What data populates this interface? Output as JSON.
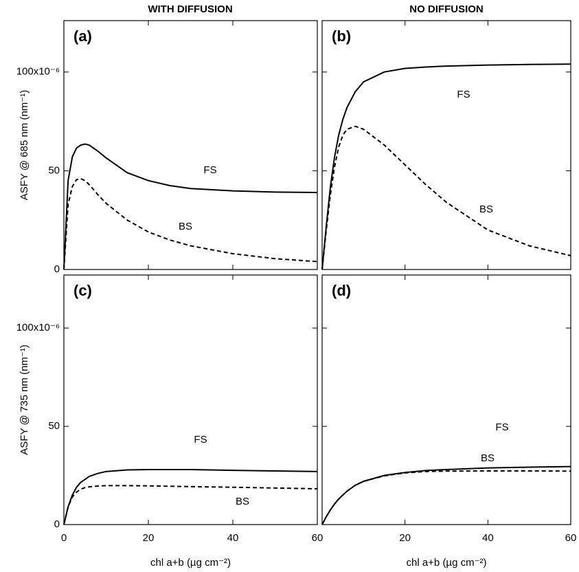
{
  "column_titles": [
    "WITH DIFFUSION",
    "NO DIFFUSION"
  ],
  "chart_data": [
    {
      "type": "line",
      "panel_label": "(a)",
      "ylabel": "ASFY @ 685 nm (nm⁻¹)",
      "x": [
        0,
        1,
        2,
        3,
        4,
        5,
        6,
        8,
        10,
        15,
        20,
        25,
        30,
        40,
        50,
        60
      ],
      "series": [
        {
          "name": "FS",
          "color": "#000000",
          "dash": false,
          "values": [
            0,
            4.5e-05,
            5.7e-05,
            6.15e-05,
            6.3e-05,
            6.35e-05,
            6.3e-05,
            6e-05,
            5.65e-05,
            4.9e-05,
            4.5e-05,
            4.25e-05,
            4.1e-05,
            3.98e-05,
            3.92e-05,
            3.9e-05
          ]
        },
        {
          "name": "BS",
          "color": "#000000",
          "dash": true,
          "values": [
            0,
            3.3e-05,
            4.2e-05,
            4.55e-05,
            4.6e-05,
            4.5e-05,
            4.3e-05,
            3.8e-05,
            3.35e-05,
            2.5e-05,
            1.9e-05,
            1.5e-05,
            1.2e-05,
            8e-06,
            5.5e-06,
            4e-06
          ]
        }
      ],
      "xlim": [
        0,
        60
      ],
      "ylim": [
        0,
        0.000126
      ],
      "xticks": [
        0,
        20,
        40,
        60
      ],
      "yticks": [
        0,
        {
          "value": 5e-05,
          "label": "50"
        },
        {
          "value": 0.0001,
          "label": "100x10⁻⁶"
        }
      ],
      "show_xtick_labels": false,
      "show_ytick_labels": true
    },
    {
      "type": "line",
      "panel_label": "(b)",
      "x": [
        0,
        1,
        2,
        3,
        4,
        5,
        6,
        8,
        10,
        15,
        20,
        25,
        30,
        40,
        50,
        60
      ],
      "series": [
        {
          "name": "FS",
          "color": "#000000",
          "dash": false,
          "values": [
            0,
            2.2e-05,
            4.2e-05,
            5.7e-05,
            6.8e-05,
            7.6e-05,
            8.2e-05,
            9e-05,
            9.5e-05,
            0.0001,
            0.0001018,
            0.0001025,
            0.000103,
            0.0001035,
            0.0001038,
            0.000104
          ]
        },
        {
          "name": "BS",
          "color": "#000000",
          "dash": true,
          "values": [
            0,
            2e-05,
            3.8e-05,
            5.2e-05,
            6.2e-05,
            6.8e-05,
            7.1e-05,
            7.25e-05,
            7.1e-05,
            6.3e-05,
            5.3e-05,
            4.3e-05,
            3.4e-05,
            2e-05,
            1.2e-05,
            7e-06
          ]
        }
      ],
      "xlim": [
        0,
        60
      ],
      "ylim": [
        0,
        0.000126
      ],
      "xticks": [
        0,
        20,
        40,
        60
      ],
      "yticks": [
        0,
        5e-05,
        0.0001
      ],
      "show_xtick_labels": false,
      "show_ytick_labels": false
    },
    {
      "type": "line",
      "panel_label": "(c)",
      "ylabel": "ASFY @ 735 nm (nm⁻¹)",
      "xlabel": "chl a+b (µg cm⁻²)",
      "x": [
        0,
        1,
        2,
        3,
        4,
        5,
        6,
        8,
        10,
        15,
        20,
        25,
        30,
        40,
        50,
        60
      ],
      "series": [
        {
          "name": "FS",
          "color": "#000000",
          "dash": false,
          "values": [
            0,
            9e-06,
            1.5e-05,
            1.9e-05,
            2.15e-05,
            2.3e-05,
            2.45e-05,
            2.6e-05,
            2.7e-05,
            2.78e-05,
            2.8e-05,
            2.8e-05,
            2.8e-05,
            2.76e-05,
            2.73e-05,
            2.7e-05
          ]
        },
        {
          "name": "BS",
          "color": "#000000",
          "dash": true,
          "values": [
            0,
            9e-06,
            1.4e-05,
            1.65e-05,
            1.8e-05,
            1.88e-05,
            1.92e-05,
            1.96e-05,
            1.98e-05,
            1.98e-05,
            1.97e-05,
            1.95e-05,
            1.93e-05,
            1.9e-05,
            1.86e-05,
            1.82e-05
          ]
        }
      ],
      "xlim": [
        0,
        60
      ],
      "ylim": [
        0,
        0.000127
      ],
      "xticks": [
        0,
        20,
        40,
        60
      ],
      "yticks": [
        0,
        {
          "value": 5e-05,
          "label": "50"
        },
        {
          "value": 0.0001,
          "label": "100x10⁻⁶"
        }
      ],
      "show_xtick_labels": true,
      "show_ytick_labels": true
    },
    {
      "type": "line",
      "panel_label": "(d)",
      "xlabel": "chl a+b (µg cm⁻²)",
      "x": [
        0,
        1,
        2,
        3,
        4,
        5,
        6,
        8,
        10,
        15,
        20,
        25,
        30,
        40,
        50,
        60
      ],
      "series": [
        {
          "name": "FS",
          "color": "#000000",
          "dash": false,
          "values": [
            0,
            4e-06,
            7.5e-06,
            1.05e-05,
            1.3e-05,
            1.5e-05,
            1.7e-05,
            2e-05,
            2.2e-05,
            2.5e-05,
            2.65e-05,
            2.75e-05,
            2.8e-05,
            2.88e-05,
            2.92e-05,
            2.95e-05
          ]
        },
        {
          "name": "BS",
          "color": "#000000",
          "dash": true,
          "values": [
            0,
            4e-06,
            7.5e-06,
            1.05e-05,
            1.3e-05,
            1.5e-05,
            1.7e-05,
            2e-05,
            2.2e-05,
            2.48e-05,
            2.63e-05,
            2.7e-05,
            2.72e-05,
            2.73e-05,
            2.73e-05,
            2.72e-05
          ]
        }
      ],
      "xlim": [
        0,
        60
      ],
      "ylim": [
        0,
        0.000127
      ],
      "xticks": [
        20,
        40,
        60
      ],
      "yticks": [
        0,
        5e-05,
        0.0001
      ],
      "show_xtick_labels": true,
      "show_ytick_labels": false
    }
  ]
}
